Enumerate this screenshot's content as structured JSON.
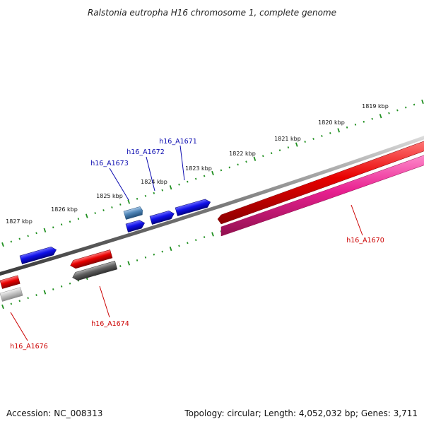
{
  "title": "Ralstonia eutropha H16 chromosome 1, complete genome",
  "colors": {
    "tick": "#1f8f1f",
    "backbone": "#7a7a7a",
    "forward_gene": "#0a0adf",
    "reverse_gene": "#e00000",
    "reverse_gene_alt": "#e0208a",
    "grey_gene": "#5f5f5f",
    "light_grey_gene": "#c8c8c8",
    "steel_gene": "#4f86b8",
    "forward_label": "#0a0ab0",
    "reverse_label": "#cc0000"
  },
  "scale_labels": [
    "1819 kbp",
    "1820 kbp",
    "1821 kbp",
    "1822 kbp",
    "1823 kbp",
    "1824 kbp",
    "1825 kbp",
    "1826 kbp",
    "1827 kbp"
  ],
  "gene_labels": [
    {
      "text": "h16_A1670",
      "strand": "reverse"
    },
    {
      "text": "h16_A1671",
      "strand": "forward"
    },
    {
      "text": "h16_A1672",
      "strand": "forward"
    },
    {
      "text": "h16_A1673",
      "strand": "forward"
    },
    {
      "text": "h16_A1674",
      "strand": "reverse"
    },
    {
      "text": "h16_A1676",
      "strand": "reverse"
    }
  ],
  "footer": {
    "accession": "Accession: NC_008313",
    "summary": "Topology: circular; Length: 4,052,032 bp; Genes: 3,711"
  }
}
